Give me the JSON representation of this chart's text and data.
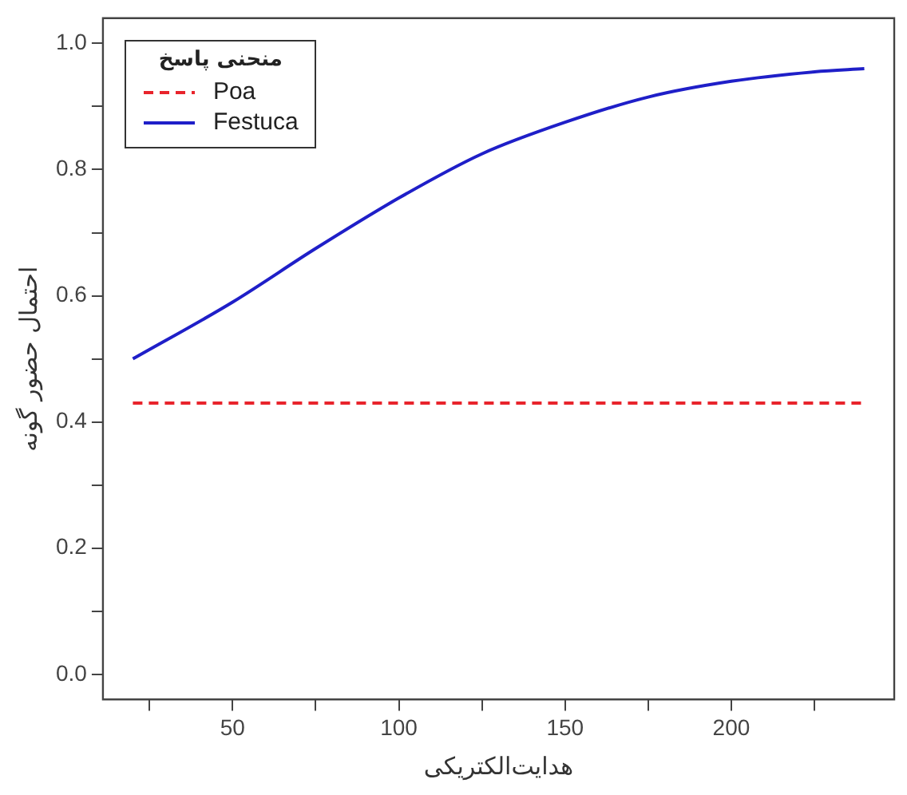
{
  "chart_data": {
    "type": "line",
    "xlabel": "هدایت‌الکتریکی",
    "ylabel": "احتمال حضور گونه",
    "legend_title": "منحنی پاسخ",
    "legend": "top left",
    "grid": false,
    "marker": "none",
    "xlim": [
      11,
      249
    ],
    "xticks": [
      {
        "value": 25,
        "label": null
      },
      50,
      {
        "value": 75,
        "label": null
      },
      100,
      {
        "value": 125,
        "label": null
      },
      150,
      {
        "value": 175,
        "label": null
      },
      200,
      {
        "value": 225,
        "label": null
      }
    ],
    "ylim": [
      -0.04,
      1.04
    ],
    "yticks": [
      {
        "value": 0,
        "label": "0.0"
      },
      {
        "value": 0.1,
        "label": null
      },
      0.2,
      {
        "value": 0.3,
        "label": null
      },
      0.4,
      {
        "value": 0.5,
        "label": null
      },
      0.6,
      {
        "value": 0.7,
        "label": null
      },
      0.8,
      {
        "value": 0.9,
        "label": null
      },
      {
        "value": 1,
        "label": "1.0"
      }
    ],
    "series": [
      {
        "name": "Poa",
        "color": "#e8242c",
        "line_style": "dashed",
        "x": [
          20,
          240
        ],
        "values": [
          0.43,
          0.43
        ]
      },
      {
        "name": "Festuca",
        "color": "#1f1fc8",
        "line_style": "solid",
        "x": [
          20,
          50,
          75,
          100,
          125,
          150,
          175,
          200,
          225,
          240
        ],
        "values": [
          0.5,
          0.59,
          0.675,
          0.755,
          0.825,
          0.875,
          0.915,
          0.94,
          0.955,
          0.96
        ]
      }
    ]
  }
}
